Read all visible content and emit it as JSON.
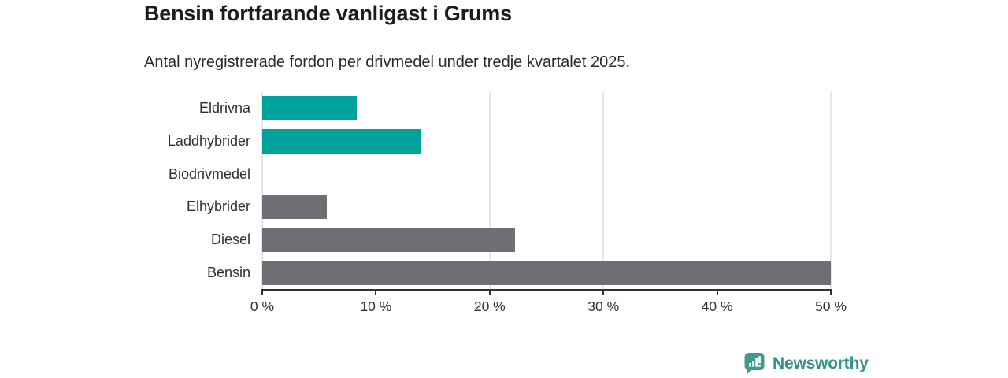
{
  "header": {
    "title": "Bensin fortfarande vanligast i Grums",
    "subtitle": "Antal nyregistrerade fordon per drivmedel under tredje kvartalet 2025."
  },
  "chart_data": {
    "type": "bar",
    "orientation": "horizontal",
    "title": "Bensin fortfarande vanligast i Grums",
    "subtitle": "Antal nyregistrerade fordon per drivmedel under tredje kvartalet 2025.",
    "categories": [
      "Eldrivna",
      "Laddhybrider",
      "Biodrivmedel",
      "Elhybrider",
      "Diesel",
      "Bensin"
    ],
    "values": [
      8.3,
      13.9,
      0,
      5.7,
      22.2,
      50
    ],
    "unit": "%",
    "bar_colors": [
      "#00a39b",
      "#00a39b",
      "#6e6e74",
      "#6e6e74",
      "#6e6e74",
      "#6e6e74"
    ],
    "xlabel": "",
    "ylabel": "",
    "xlim": [
      0,
      50
    ],
    "x_tick_values": [
      0,
      10,
      20,
      30,
      40,
      50
    ],
    "x_tick_labels": [
      "0 %",
      "10 %",
      "20 %",
      "30 %",
      "40 %",
      "50 %"
    ],
    "grid": true,
    "legend": "none"
  },
  "branding": {
    "logo_text": "Newsworthy",
    "logo_icon": "speech-bubble-bar-chart-icon"
  },
  "colors": {
    "teal_bar": "#00a39b",
    "gray_bar": "#6e6e74",
    "gridline": "#e7e7e7",
    "axis": "#333333",
    "logo_icon_teal": "#42998f",
    "logo_text_teal": "#33918b",
    "background": "#ffffff"
  }
}
